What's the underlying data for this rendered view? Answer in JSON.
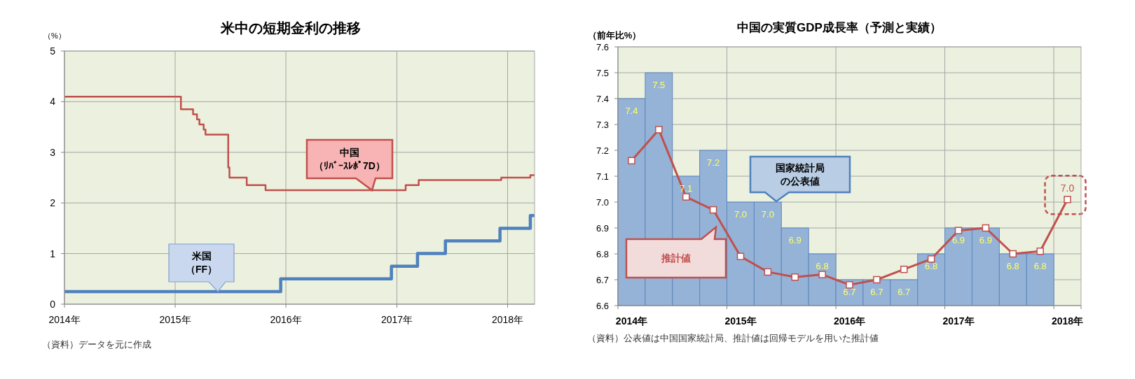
{
  "chart_data": [
    {
      "type": "step",
      "title": "米中の短期金利の推移",
      "ylabel": "（%）",
      "xlim": [
        "2014-01-01",
        "2018-03-31"
      ],
      "xticks": [
        {
          "value": "2014-01-01",
          "label": "2014年"
        },
        {
          "value": "2015-01-01",
          "label": "2015年"
        },
        {
          "value": "2016-01-01",
          "label": "2016年"
        },
        {
          "value": "2017-01-01",
          "label": "2017年"
        },
        {
          "value": "2018-01-01",
          "label": "2018年"
        }
      ],
      "ylim": [
        0,
        5
      ],
      "yticks": [
        0,
        1,
        2,
        3,
        4,
        5
      ],
      "grid": true,
      "series": [
        {
          "name": "中国（ﾘﾊﾞｰｽﾚﾎﾟ7D）",
          "color": "#c0504d",
          "x": [
            "2014-01-01",
            "2015-01-20",
            "2015-03-01",
            "2015-03-14",
            "2015-03-22",
            "2015-04-05",
            "2015-04-11",
            "2015-06-25",
            "2015-06-29",
            "2015-08-25",
            "2015-10-26",
            "2017-01-30",
            "2017-03-14",
            "2017-12-11",
            "2018-03-17",
            "2018-03-31"
          ],
          "values": [
            4.1,
            3.85,
            3.75,
            3.65,
            3.55,
            3.45,
            3.35,
            2.7,
            2.5,
            2.35,
            2.25,
            2.35,
            2.45,
            2.5,
            2.55,
            2.55
          ]
        },
        {
          "name": "米国（FF）",
          "color": "#4f81bd",
          "x": [
            "2014-01-01",
            "2015-12-15",
            "2016-12-14",
            "2017-03-10",
            "2017-06-10",
            "2017-12-07",
            "2018-03-17",
            "2018-03-31"
          ],
          "values": [
            0.25,
            0.5,
            0.75,
            1.0,
            1.25,
            1.5,
            1.75,
            1.75
          ]
        }
      ],
      "annotations": [
        "（資料）データを元に作成"
      ]
    },
    {
      "type": "bar",
      "title": "中国の実質GDP成長率（予測と実績）",
      "ylabel": "（前年比%）",
      "categories": [
        "2014年",
        null,
        null,
        null,
        "2015年",
        null,
        null,
        null,
        "2016年",
        null,
        null,
        null,
        "2017年",
        null,
        null,
        null,
        "2018年"
      ],
      "ylim": [
        6.6,
        7.6
      ],
      "yticks": [
        {
          "value": 6.6,
          "label": "6.6"
        },
        {
          "value": 6.7,
          "label": "6.7"
        },
        {
          "value": 6.8,
          "label": "6.8"
        },
        {
          "value": 6.9,
          "label": "6.9"
        },
        {
          "value": 7.0,
          "label": "7.0"
        },
        {
          "value": 7.1,
          "label": "7.1"
        },
        {
          "value": 7.2,
          "label": "7.2"
        },
        {
          "value": 7.3,
          "label": "7.3"
        },
        {
          "value": 7.4,
          "label": "7.4"
        },
        {
          "value": 7.5,
          "label": "7.5"
        },
        {
          "value": 7.6,
          "label": "7.6"
        }
      ],
      "grid": true,
      "series": [
        {
          "name": "国家統計局の公表値",
          "color": "#95b3d7",
          "values": [
            7.4,
            7.5,
            7.1,
            7.2,
            7.0,
            7.0,
            6.9,
            6.8,
            6.7,
            6.7,
            6.7,
            6.8,
            6.9,
            6.9,
            6.8,
            6.8,
            null
          ],
          "value_labels": [
            "7.4",
            "7.5",
            "7.1",
            "7.2",
            "7.0",
            "7.0",
            "6.9",
            "6.8",
            "6.7",
            "6.7",
            "6.7",
            "6.8",
            "6.9",
            "6.9",
            "6.8",
            "6.8",
            null
          ]
        },
        {
          "name": "推計値",
          "type": "line",
          "color": "#c0504d",
          "marker": "square",
          "values": [
            7.16,
            7.28,
            7.02,
            6.97,
            6.79,
            6.73,
            6.71,
            6.72,
            6.68,
            6.7,
            6.74,
            6.78,
            6.89,
            6.9,
            6.8,
            6.81,
            7.01
          ],
          "value_labels": [
            null,
            null,
            null,
            null,
            null,
            null,
            null,
            null,
            null,
            null,
            null,
            null,
            null,
            null,
            null,
            null,
            "7.0"
          ]
        }
      ],
      "annotations": [
        "（資料）公表値は中国国家統計局、推計値は回帰モデルを用いた推計値"
      ]
    }
  ]
}
